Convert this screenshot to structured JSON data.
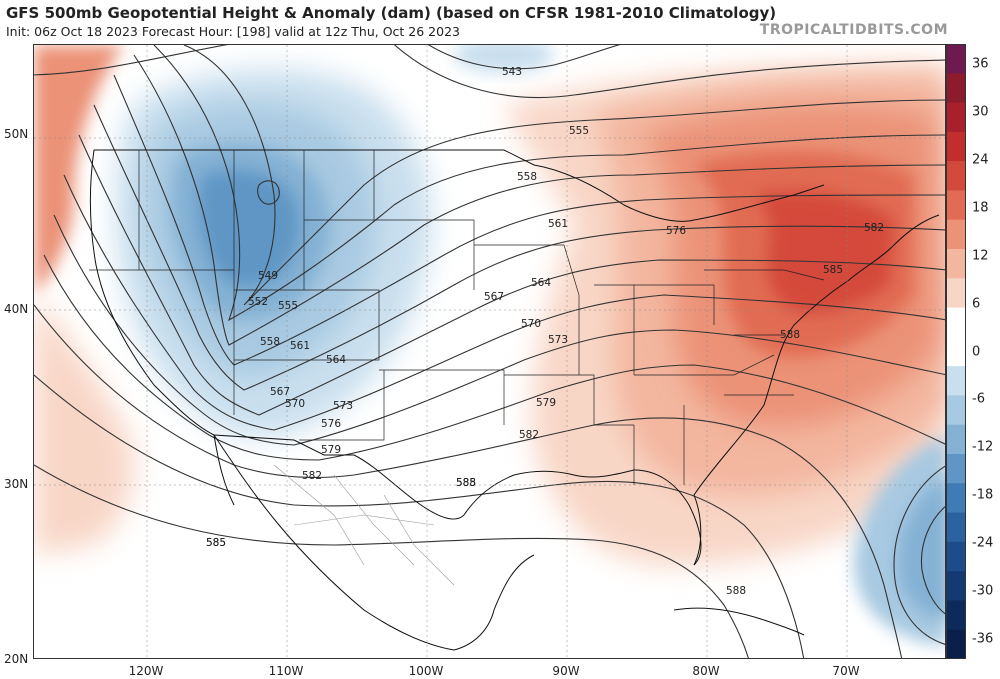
{
  "header": {
    "title": "GFS 500mb Geopotential Height & Anomaly (dam) (based on CFSR 1981-2010 Climatology)",
    "subtitle": "Init: 06z Oct 18 2023   Forecast Hour: [198]   valid at 12z Thu, Oct 26 2023",
    "credit": "TROPICALTIDBITS.COM"
  },
  "axes": {
    "lat_labels": [
      "50N",
      "40N",
      "30N",
      "20N"
    ],
    "lon_labels": [
      "120W",
      "110W",
      "100W",
      "90W",
      "80W",
      "70W"
    ]
  },
  "colorbar": {
    "labels": [
      "36",
      "30",
      "24",
      "18",
      "12",
      "6",
      "0",
      "-6",
      "-12",
      "-18",
      "-24",
      "-30",
      "-36"
    ],
    "colors": [
      "#6e1a4f",
      "#8c1b2e",
      "#a8202b",
      "#c22e2e",
      "#d44a3a",
      "#e16c53",
      "#eb9277",
      "#f3b69f",
      "#f8d6c6",
      "#ffffff",
      "#ffffff",
      "#c9dfee",
      "#a7c9e1",
      "#84b1d4",
      "#5f96c5",
      "#3f7bb4",
      "#2b62a1",
      "#1d4c8a",
      "#143a73",
      "#0d2a5c",
      "#0a1f4a"
    ]
  },
  "contour_labels": {
    "labels": [
      "543",
      "549",
      "552",
      "555",
      "558",
      "561",
      "564",
      "567",
      "570",
      "573",
      "576",
      "579",
      "582",
      "585",
      "588",
      "555",
      "558",
      "561",
      "564",
      "567",
      "570",
      "573",
      "576",
      "579",
      "582",
      "585",
      "582",
      "585",
      "588",
      "588",
      "585"
    ]
  }
}
